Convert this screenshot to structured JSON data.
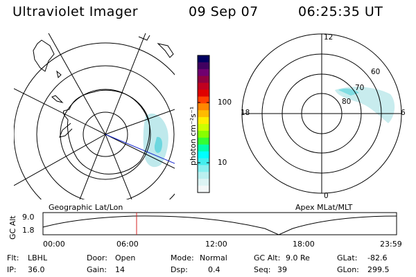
{
  "header": {
    "title": "Ultraviolet Imager",
    "date": "09 Sep 07",
    "time": "06:25:35 UT"
  },
  "left_panel": {
    "caption": "Geographic Lat/Lon"
  },
  "right_panel": {
    "caption": "Apex MLat/MLT",
    "mlt_labels": {
      "top": "12",
      "left": "18",
      "right": "6",
      "bottom": "0"
    },
    "lat_labels": [
      "60",
      "70",
      "80"
    ]
  },
  "colorbar": {
    "unit_label": "photon cm⁻²s⁻¹",
    "ticks": [
      "100",
      "10"
    ],
    "colors": [
      "#000060",
      "#400060",
      "#700070",
      "#900040",
      "#c00020",
      "#e00000",
      "#ff4000",
      "#ff8800",
      "#ffbb00",
      "#ffee00",
      "#ccff00",
      "#88ff00",
      "#33ff33",
      "#00ffaa",
      "#00ffff",
      "#44eeee",
      "#88f0f0",
      "#bbf0f0",
      "#ddf4f4",
      "#f4f8f8"
    ]
  },
  "timeline": {
    "ylabel": "GC Alt",
    "yticks": [
      "9.0",
      "1.8"
    ],
    "xticks": [
      "00:00",
      "06:00",
      "12:00",
      "18:00",
      "23:59"
    ]
  },
  "status": {
    "col1": [
      {
        "label": "Flt:",
        "value": "LBHL"
      },
      {
        "label": "IP:",
        "value": "36.0"
      }
    ],
    "col2": [
      {
        "label": "Door:",
        "value": "Open"
      },
      {
        "label": "Gain:",
        "value": "14"
      }
    ],
    "col3": [
      {
        "label": "Mode:",
        "value": "Normal"
      },
      {
        "label": "Dsp:",
        "value": "0.4"
      }
    ],
    "col4": [
      {
        "label": "GC Alt:",
        "value": "9.0 Re"
      },
      {
        "label": "Seq:",
        "value": "39"
      }
    ],
    "col5": [
      {
        "label": "GLat:",
        "value": "-82.6"
      },
      {
        "label": "GLon:",
        "value": "299.5"
      }
    ]
  }
}
